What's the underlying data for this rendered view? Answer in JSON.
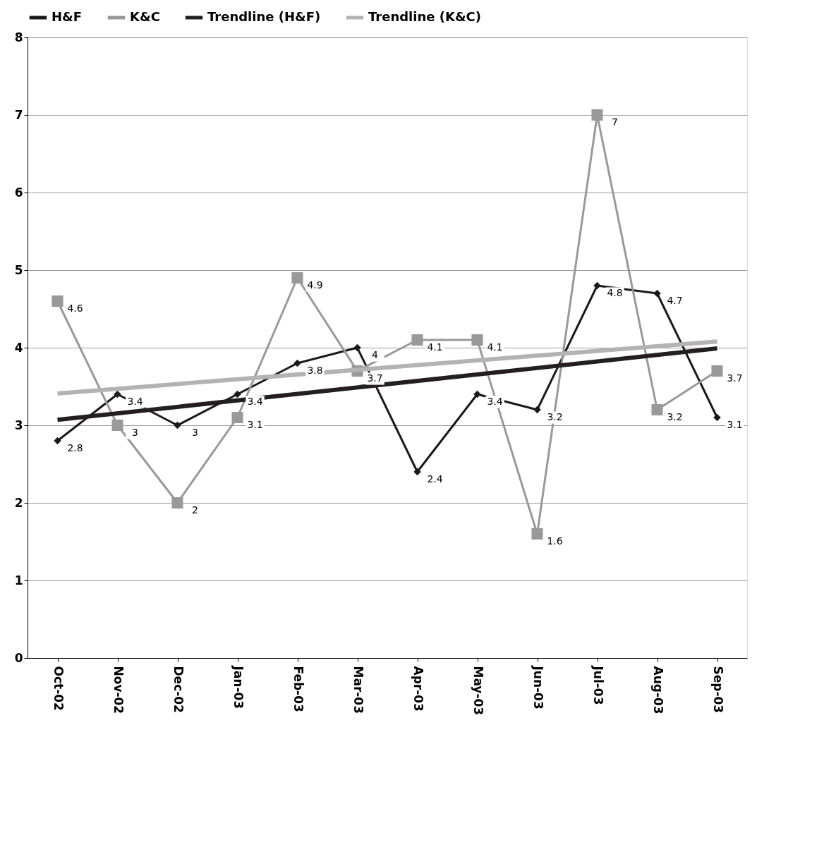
{
  "chart_data": {
    "type": "line",
    "categories": [
      "Oct-02",
      "Nov-02",
      "Dec-02",
      "Jan-03",
      "Feb-03",
      "Mar-03",
      "Apr-03",
      "May-03",
      "Jun-03",
      "Jul-03",
      "Aug-03",
      "Sep-03"
    ],
    "series": [
      {
        "name": "H&F",
        "color": "#1a1a1a",
        "marker": "diamond",
        "values": [
          2.8,
          3.4,
          3,
          3.4,
          3.8,
          4,
          2.4,
          3.4,
          3.2,
          4.8,
          4.7,
          3.1
        ],
        "value_labels": [
          "2.8",
          "3.4",
          "3",
          "3.4",
          "3.8",
          "4",
          "2.4",
          "3.4",
          "3.2",
          "4.8",
          "4.7",
          "3.1"
        ]
      },
      {
        "name": "K&C",
        "color": "#999999",
        "marker": "square",
        "values": [
          4.6,
          3,
          2,
          3.1,
          4.9,
          3.7,
          4.1,
          4.1,
          1.6,
          7,
          3.2,
          3.7
        ],
        "value_labels": [
          "4.6",
          "3",
          "2",
          "3.1",
          "4.9",
          "3.7",
          "4.1",
          "4.1",
          "1.6",
          "7",
          "3.2",
          "3.7"
        ]
      },
      {
        "name": "Trendline (H&F)",
        "color": "#231f20",
        "marker": "none",
        "x": [
          "Oct-02",
          "Sep-03"
        ],
        "values": [
          3.07,
          3.99
        ]
      },
      {
        "name": "Trendline (K&C)",
        "color": "#b3b3b3",
        "marker": "none",
        "x": [
          "Oct-02",
          "Sep-03"
        ],
        "values": [
          3.41,
          4.08
        ]
      }
    ],
    "ylim": [
      0,
      8
    ],
    "yticks": [
      0,
      1,
      2,
      3,
      4,
      5,
      6,
      7,
      8
    ],
    "grid": "y",
    "legend": "top"
  }
}
